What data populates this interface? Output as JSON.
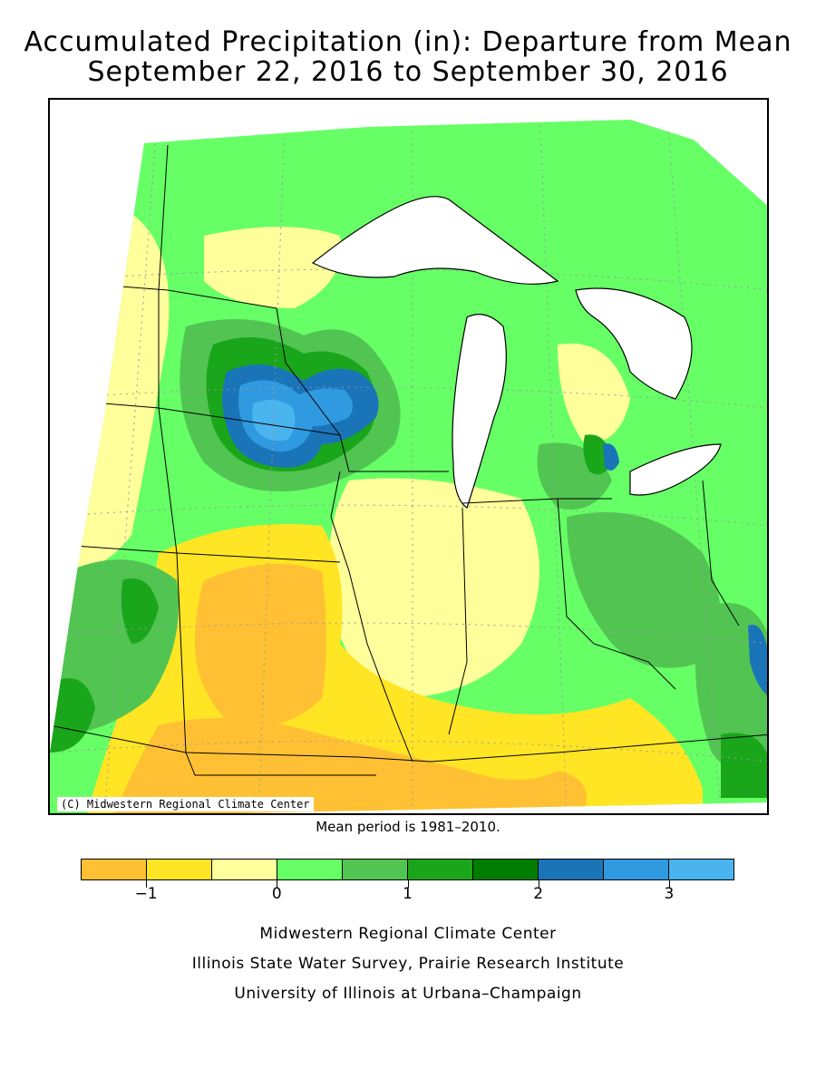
{
  "title": {
    "line1": "Accumulated Precipitation (in): Departure from Mean",
    "line2": "September 22, 2016 to September 30, 2016"
  },
  "map": {
    "copyright": "(C) Midwestern Regional Climate Center",
    "mean_note": "Mean period is 1981–2010."
  },
  "legend": {
    "colors": [
      "#ffc133",
      "#ffe524",
      "#ffff9c",
      "#66ff66",
      "#52c452",
      "#1aa61a",
      "#007d00",
      "#1a74b8",
      "#2f9ae0",
      "#4ab4ee"
    ],
    "ticks": [
      {
        "label": "−1",
        "value": -1
      },
      {
        "label": "0",
        "value": 0
      },
      {
        "label": "1",
        "value": 1
      },
      {
        "label": "2",
        "value": 2
      },
      {
        "label": "3",
        "value": 3
      }
    ]
  },
  "credits": {
    "line1": "Midwestern Regional Climate Center",
    "line2": "Illinois State Water Survey, Prairie Research Institute",
    "line3": "University of Illinois at Urbana–Champaign"
  }
}
